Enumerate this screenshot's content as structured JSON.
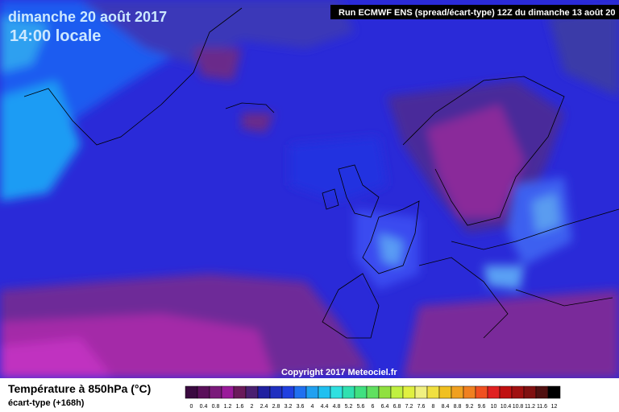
{
  "header": {
    "date": "dimanche 20 août 2017",
    "time": "14:00 locale",
    "run": "Run ECMWF ENS (spread/écart-type) 12Z du dimanche 13 août 20"
  },
  "copyright": "Copyright 2017 Meteociel.fr",
  "legend": {
    "title": "Température à 850hPa (°C)",
    "subtitle": "écart-type  (+168h)",
    "labels": [
      0,
      0.4,
      0.8,
      1.2,
      1.6,
      2,
      2.4,
      2.8,
      3.2,
      3.6,
      4,
      4.4,
      4.8,
      5.2,
      5.6,
      6,
      6.4,
      6.8,
      7.2,
      7.6,
      8,
      8.4,
      8.8,
      9.2,
      9.6,
      10,
      10.4,
      10.8,
      11.2,
      11.6,
      12
    ],
    "colors": [
      "#3a0a40",
      "#5a105a",
      "#7a1a7a",
      "#9a1a9a",
      "#6a1a5a",
      "#4a2070",
      "#2020a0",
      "#2030c0",
      "#2040e0",
      "#2070f0",
      "#20a0f0",
      "#20c0f0",
      "#30e0e0",
      "#30e0b0",
      "#40e080",
      "#60e060",
      "#90e040",
      "#c0f040",
      "#e0f040",
      "#f0f080",
      "#f0e040",
      "#f0c020",
      "#f0a020",
      "#f08020",
      "#f05020",
      "#e02020",
      "#c01010",
      "#a01010",
      "#801010",
      "#501010",
      "#000000"
    ]
  }
}
